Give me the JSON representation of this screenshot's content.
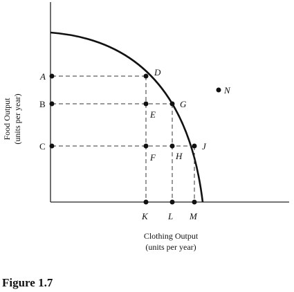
{
  "figure": {
    "caption": "Figure 1.7",
    "x_axis_title": "Clothing Output",
    "x_axis_units": "(units per year)",
    "y_axis_title": "Food Output",
    "y_axis_units": "(units per year)"
  },
  "points": {
    "A": "A",
    "B": "B",
    "C": "C",
    "D": "D",
    "E": "E",
    "F": "F",
    "G": "G",
    "H": "H",
    "J": "J",
    "K": "K",
    "L": "L",
    "M": "M",
    "N": "N"
  }
}
